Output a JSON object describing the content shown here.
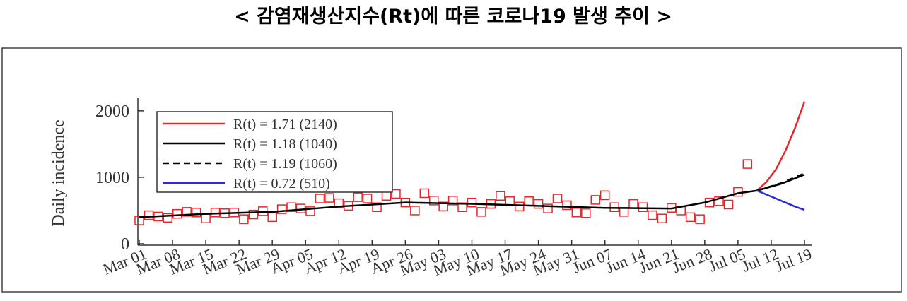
{
  "chart_data": {
    "type": "line",
    "title": "< 감염재생산지수(Rt)에 따른 코로나19 발생 추이 >",
    "ylabel": "Daily incidence",
    "xlim": [
      0,
      140
    ],
    "xticks": [
      {
        "value": 0,
        "label": "Mar 01"
      },
      {
        "value": 7,
        "label": "Mar 08"
      },
      {
        "value": 14,
        "label": "Mar 15"
      },
      {
        "value": 21,
        "label": "Mar 22"
      },
      {
        "value": 28,
        "label": "Mar 29"
      },
      {
        "value": 35,
        "label": "Apr 05"
      },
      {
        "value": 42,
        "label": "Apr 12"
      },
      {
        "value": 49,
        "label": "Apr 19"
      },
      {
        "value": 56,
        "label": "Apr 26"
      },
      {
        "value": 63,
        "label": "May 03"
      },
      {
        "value": 70,
        "label": "May 10"
      },
      {
        "value": 77,
        "label": "May 17"
      },
      {
        "value": 84,
        "label": "May 24"
      },
      {
        "value": 91,
        "label": "May 31"
      },
      {
        "value": 98,
        "label": "Jun 07"
      },
      {
        "value": 105,
        "label": "Jun 14"
      },
      {
        "value": 112,
        "label": "Jun 21"
      },
      {
        "value": 119,
        "label": "Jun 28"
      },
      {
        "value": 126,
        "label": "Jul 05"
      },
      {
        "value": 133,
        "label": "Jul 12"
      },
      {
        "value": 140,
        "label": "Jul 19"
      }
    ],
    "ylim": [
      0,
      2200
    ],
    "yticks": [
      0,
      1000,
      2000
    ],
    "points": {
      "color": "#e8262b",
      "x": [
        0,
        2,
        4,
        6,
        8,
        10,
        12,
        14,
        16,
        18,
        20,
        22,
        24,
        26,
        28,
        30,
        32,
        34,
        36,
        38,
        40,
        42,
        44,
        46,
        48,
        50,
        52,
        54,
        56,
        58,
        60,
        62,
        64,
        66,
        68,
        70,
        72,
        74,
        76,
        78,
        80,
        82,
        84,
        86,
        88,
        90,
        92,
        94,
        96,
        98,
        100,
        102,
        104,
        106,
        108,
        110,
        112,
        114,
        116,
        118,
        120,
        122,
        124,
        126,
        128
      ],
      "values": [
        350,
        430,
        410,
        390,
        450,
        480,
        470,
        380,
        470,
        460,
        470,
        370,
        440,
        490,
        400,
        520,
        550,
        530,
        490,
        680,
        690,
        610,
        570,
        700,
        680,
        550,
        720,
        750,
        620,
        500,
        760,
        650,
        560,
        650,
        550,
        620,
        480,
        600,
        720,
        640,
        560,
        640,
        600,
        530,
        680,
        580,
        470,
        460,
        660,
        730,
        550,
        480,
        600,
        550,
        430,
        380,
        540,
        500,
        400,
        370,
        620,
        640,
        590,
        780,
        1200
      ]
    },
    "series": [
      {
        "name": "R(t) = 1.71 (2140)",
        "color": "#e8262b",
        "dash": false,
        "x": [
          130,
          132,
          134,
          136,
          138,
          140
        ],
        "values": [
          800,
          930,
          1120,
          1400,
          1740,
          2140
        ]
      },
      {
        "name": "R(t) = 1.18 (1040)",
        "color": "#000000",
        "dash": false,
        "x": [
          0,
          14,
          28,
          42,
          56,
          70,
          84,
          98,
          112,
          119,
          126,
          130,
          135,
          140
        ],
        "values": [
          400,
          450,
          480,
          560,
          620,
          600,
          570,
          540,
          530,
          620,
          760,
          800,
          900,
          1040
        ]
      },
      {
        "name": "R(t) = 1.19 (1060)",
        "color": "#000000",
        "dash": true,
        "x": [
          130,
          135,
          140
        ],
        "values": [
          800,
          910,
          1060
        ]
      },
      {
        "name": "R(t) = 0.72 (510)",
        "color": "#2a2ae0",
        "dash": false,
        "x": [
          130,
          132,
          134,
          136,
          138,
          140
        ],
        "values": [
          800,
          740,
          680,
          620,
          560,
          510
        ]
      }
    ]
  }
}
